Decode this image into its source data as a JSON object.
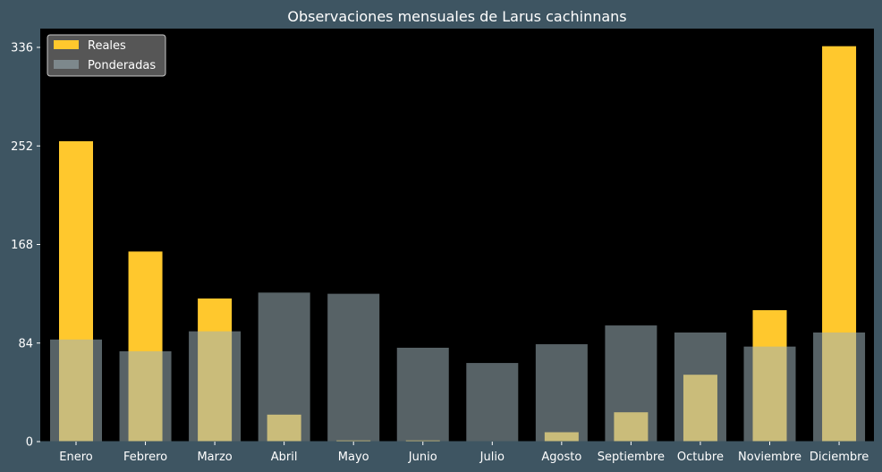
{
  "chart_data": {
    "type": "bar",
    "title": "Observaciones mensuales de Larus cachinnans",
    "xlabel": "",
    "ylabel": "",
    "categories": [
      "Enero",
      "Febrero",
      "Marzo",
      "Abril",
      "Mayo",
      "Junio",
      "Julio",
      "Agosto",
      "Septiembre",
      "Octubre",
      "Noviembre",
      "Diciembre"
    ],
    "series": [
      {
        "name": "Reales",
        "color": "#ffc82d",
        "values": [
          256,
          162,
          122,
          23,
          1,
          1,
          0,
          8,
          25,
          57,
          112,
          337
        ]
      },
      {
        "name": "Ponderadas",
        "color": "#9fb3b9",
        "values": [
          87,
          77,
          94,
          127,
          126,
          80,
          67,
          83,
          99,
          93,
          81,
          93
        ]
      }
    ],
    "yticks": [
      0,
      84,
      168,
      252,
      336
    ],
    "ylim": [
      0,
      352
    ],
    "grid": false,
    "legend": "top-left",
    "background": "#3e5562",
    "plot_background": "#000000"
  }
}
